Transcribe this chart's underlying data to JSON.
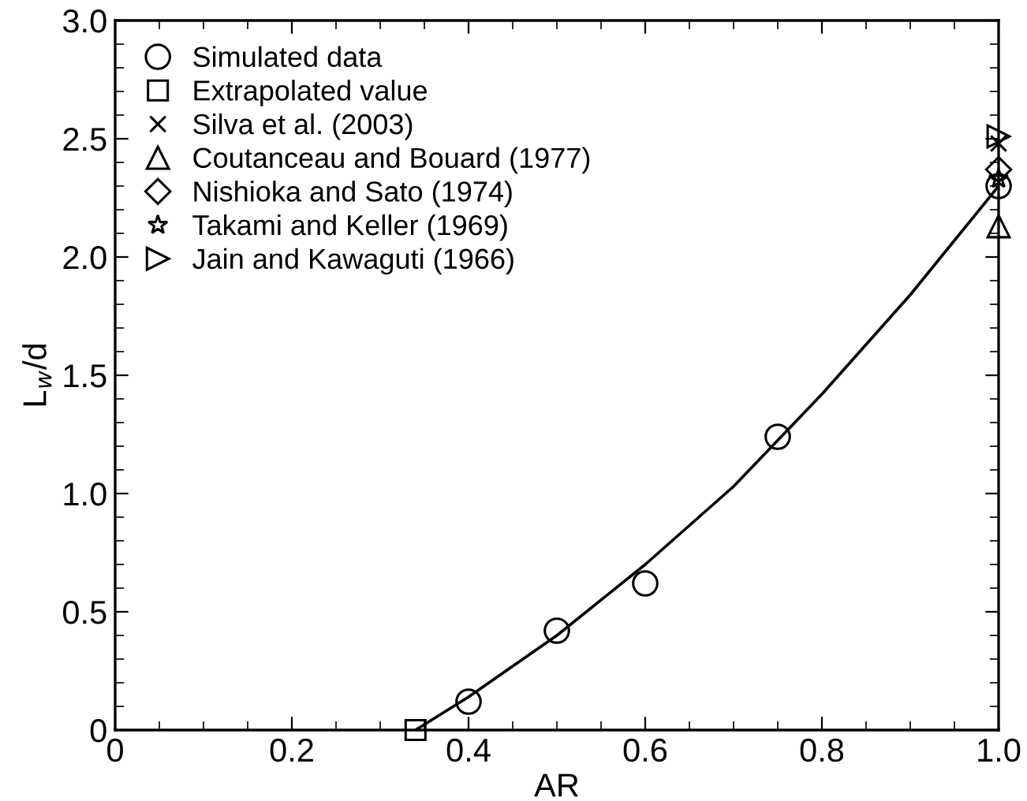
{
  "chart_data": {
    "type": "scatter",
    "xlabel": "AR",
    "ylabel": "L$_{w}$/d",
    "xlim": [
      0,
      1.0
    ],
    "ylim": [
      0,
      3.0
    ],
    "xticks": [
      0,
      0.2,
      0.4,
      0.6,
      0.8,
      {
        "value": 1.0,
        "label": "1.0"
      }
    ],
    "yticks": [
      0,
      0.5,
      {
        "value": 1.0,
        "label": "1.0"
      },
      1.5,
      {
        "value": 2.0,
        "label": "2.0"
      },
      2.5,
      {
        "value": 3.0,
        "label": "3.0"
      }
    ],
    "grid": false,
    "legend": "top left",
    "series": [
      {
        "name": "Simulated data",
        "color": "#000000",
        "marker": "circle",
        "x": [
          0.4,
          0.5,
          0.6,
          0.75,
          1.0
        ],
        "values": [
          0.12,
          0.42,
          0.62,
          1.24,
          2.3
        ]
      },
      {
        "name": "Extrapolated value",
        "color": "#000000",
        "marker": "square",
        "x": [
          0.34
        ],
        "values": [
          0
        ]
      },
      {
        "name": "Silva et al. (2003)",
        "color": "#000000",
        "marker": "cross",
        "x": [
          1.0
        ],
        "values": [
          2.48
        ]
      },
      {
        "name": "Coutanceau and Bouard (1977)",
        "color": "#000000",
        "marker": "triangle",
        "x": [
          1.0
        ],
        "values": [
          2.13
        ]
      },
      {
        "name": "Nishioka and Sato (1974)",
        "color": "#000000",
        "marker": "diamond",
        "x": [
          1.0
        ],
        "values": [
          2.37
        ]
      },
      {
        "name": "Takami and Keller (1969)",
        "color": "#000000",
        "marker": "star",
        "x": [
          1.0
        ],
        "values": [
          2.33
        ]
      },
      {
        "name": "Jain and Kawaguti (1966)",
        "color": "#000000",
        "marker": "triangle-right",
        "x": [
          1.0
        ],
        "values": [
          2.51
        ]
      },
      {
        "type": "line",
        "color": "#000000",
        "marker": "none",
        "x": [
          0.34,
          0.4,
          0.5,
          0.6,
          0.7,
          0.8,
          0.9,
          1.0
        ],
        "values": [
          0,
          0.14,
          0.4,
          0.7,
          1.03,
          1.42,
          1.84,
          2.3
        ]
      }
    ]
  }
}
